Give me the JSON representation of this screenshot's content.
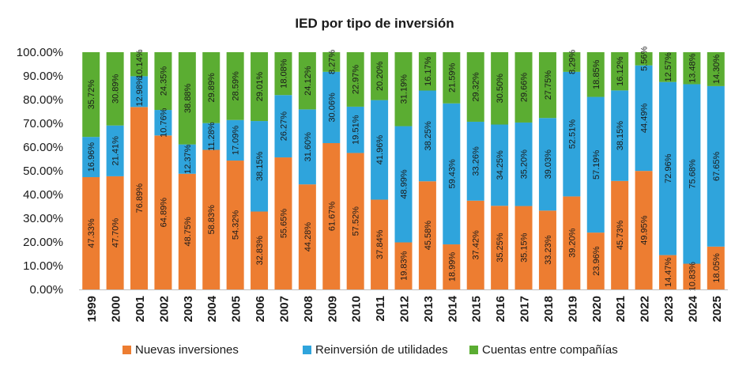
{
  "chart_data": {
    "type": "bar",
    "stacked": true,
    "title": "IED por tipo de inversión",
    "xlabel": "",
    "ylabel": "",
    "ylim": [
      0,
      100
    ],
    "yticks": [
      "0.00%",
      "10.00%",
      "20.00%",
      "30.00%",
      "40.00%",
      "50.00%",
      "60.00%",
      "70.00%",
      "80.00%",
      "90.00%",
      "100.00%"
    ],
    "grid": false,
    "legend_position": "bottom",
    "categories": [
      "1999",
      "2000",
      "2001",
      "2002",
      "2003",
      "2004",
      "2005",
      "2006",
      "2007",
      "2008",
      "2009",
      "2010",
      "2011",
      "2012",
      "2013",
      "2014",
      "2015",
      "2016",
      "2017",
      "2018",
      "2019",
      "2020",
      "2021",
      "2022",
      "2023",
      "2024",
      "2025"
    ],
    "series": [
      {
        "name": "Nuevas inversiones",
        "color": "#ED7D31",
        "values": [
          47.33,
          47.7,
          76.89,
          64.89,
          48.75,
          58.83,
          54.32,
          32.83,
          55.65,
          44.28,
          61.67,
          57.52,
          37.84,
          19.83,
          45.58,
          18.99,
          37.42,
          35.25,
          35.15,
          33.23,
          39.2,
          23.96,
          45.73,
          49.95,
          14.47,
          10.83,
          18.05
        ],
        "labels": [
          "47.33%",
          "47.70%",
          "76.89%",
          "64.89%",
          "48.75%",
          "58.83%",
          "54.32%",
          "32.83%",
          "55.65%",
          "44.28%",
          "61.67%",
          "57.52%",
          "37.84%",
          "19.83%",
          "45.58%",
          "18.99%",
          "37.42%",
          "35.25%",
          "35.15%",
          "33.23%",
          "39.20%",
          "23.96%",
          "45.73%",
          "49.95%",
          "14.47%",
          "10.83%",
          "18.05%"
        ]
      },
      {
        "name": "Reinversión de utilidades",
        "color": "#2FA4DC",
        "values": [
          16.96,
          21.41,
          12.98,
          10.76,
          12.37,
          11.28,
          17.09,
          38.15,
          26.27,
          31.6,
          30.06,
          19.51,
          41.96,
          48.99,
          38.25,
          59.43,
          33.26,
          34.25,
          35.2,
          39.03,
          52.51,
          57.19,
          38.15,
          44.49,
          72.96,
          75.68,
          67.65
        ],
        "labels": [
          "16.96%",
          "21.41%",
          "12.98%",
          "10.76%",
          "12.37%",
          "11.28%",
          "17.09%",
          "38.15%",
          "26.27%",
          "31.60%",
          "30.06%",
          "19.51%",
          "41.96%",
          "48.99%",
          "38.25%",
          "59.43%",
          "33.26%",
          "34.25%",
          "35.20%",
          "39.03%",
          "52.51%",
          "57.19%",
          "38.15%",
          "44.49%",
          "72.96%",
          "75.68%",
          "67.65%"
        ]
      },
      {
        "name": "Cuentas entre compañías",
        "color": "#5BAD32",
        "values": [
          35.72,
          30.89,
          10.14,
          24.35,
          38.88,
          29.89,
          28.59,
          29.01,
          18.08,
          24.12,
          8.27,
          22.97,
          20.2,
          31.19,
          16.17,
          21.59,
          29.32,
          30.5,
          29.66,
          27.75,
          8.29,
          18.85,
          16.12,
          5.56,
          12.57,
          13.48,
          14.3
        ],
        "labels": [
          "35.72%",
          "30.89%",
          "10.14%",
          "24.35%",
          "38.88%",
          "29.89%",
          "28.59%",
          "29.01%",
          "18.08%",
          "24.12%",
          "8.27%",
          "22.97%",
          "20.20%",
          "31.19%",
          "16.17%",
          "21.59%",
          "29.32%",
          "30.50%",
          "29.66%",
          "27.75%",
          "8.29%",
          "18.85%",
          "16.12%",
          "5.56%",
          "12.57%",
          "13.48%",
          "14.30%"
        ]
      }
    ]
  }
}
